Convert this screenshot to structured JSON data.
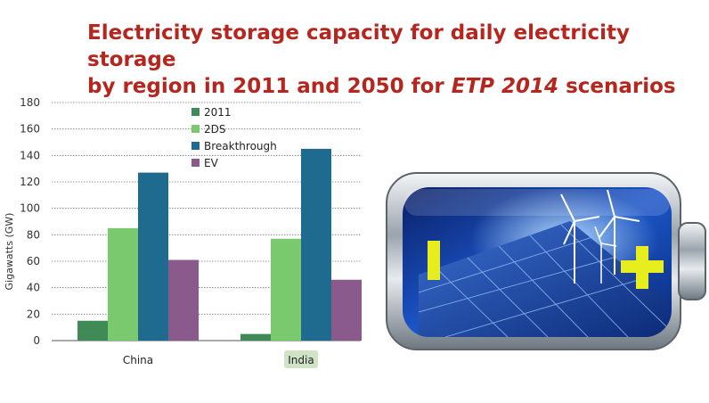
{
  "title": {
    "line1": "Electricity storage capacity for daily electricity storage",
    "line2_pre": "by region in 2011 and 2050 for ",
    "line2_em": "ETP 2014",
    "line2_post": " scenarios"
  },
  "colors": {
    "title": "#b5261e",
    "series_2011": "#3f8a57",
    "series_2DS": "#7bc96f",
    "series_Breakthrough": "#1f6b8f",
    "series_EV": "#8a5a8c",
    "india_highlight": "#cfe3c7"
  },
  "battery_image": {
    "icons": [
      "minus-sign-icon",
      "plus-sign-icon",
      "solar-panel-icon",
      "wind-turbine-icon"
    ]
  },
  "chart_data": {
    "type": "bar",
    "ylabel": "Gigawatts (GW)",
    "ylim": [
      0,
      180
    ],
    "yticks": [
      0,
      20,
      40,
      60,
      80,
      100,
      120,
      140,
      160,
      180
    ],
    "grid": true,
    "legend_position": "top-center",
    "categories": [
      "China",
      "India"
    ],
    "highlighted_category": "India",
    "series": [
      {
        "name": "2011",
        "values": [
          15,
          5
        ],
        "color": "#3f8a57"
      },
      {
        "name": "2DS",
        "values": [
          85,
          77
        ],
        "color": "#7bc96f"
      },
      {
        "name": "Breakthrough",
        "values": [
          127,
          145
        ],
        "color": "#1f6b8f"
      },
      {
        "name": "EV",
        "values": [
          61,
          46
        ],
        "color": "#8a5a8c"
      }
    ]
  }
}
